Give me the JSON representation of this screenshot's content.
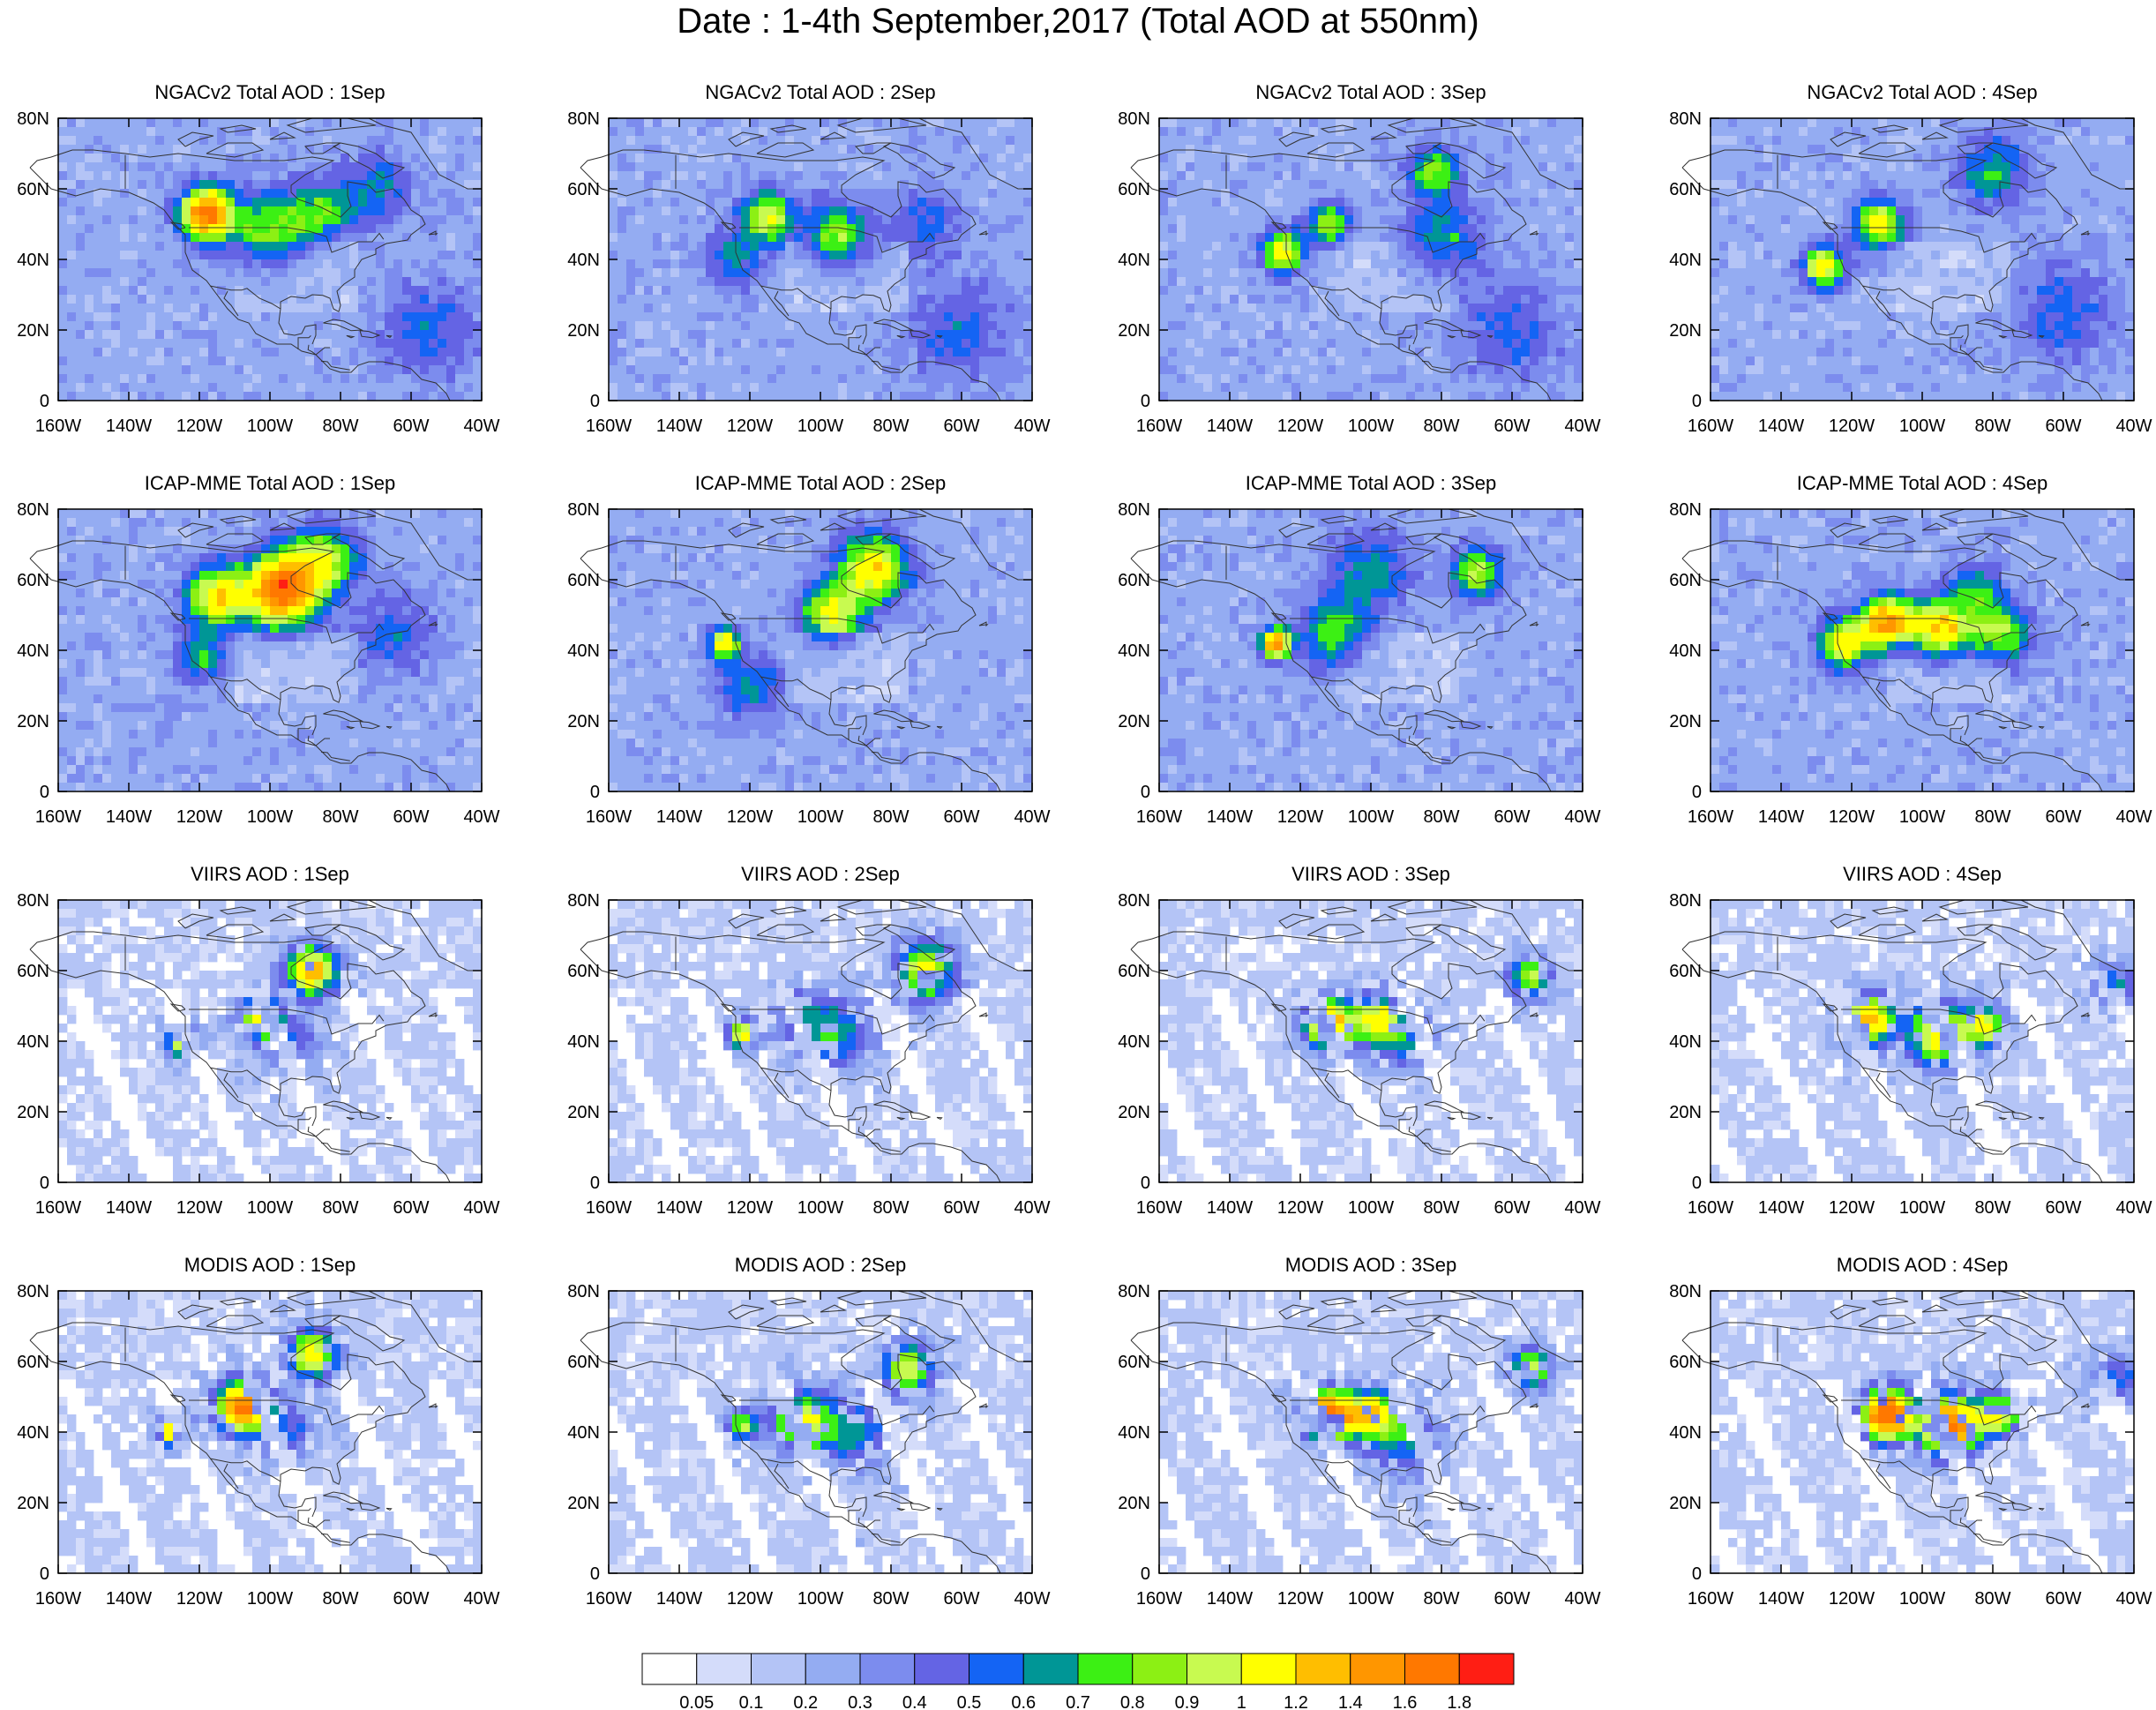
{
  "title": "Date : 1-4th September,2017 (Total AOD at 550nm)",
  "chart_data": {
    "type": "heatmap",
    "variable": "Total AOD at 550nm",
    "rows": [
      "NGACv2 Total AOD",
      "ICAP-MME Total AOD",
      "VIIRS AOD",
      "MODIS AOD"
    ],
    "days": [
      "1Sep",
      "2Sep",
      "3Sep",
      "4Sep"
    ],
    "panels": [
      {
        "title": "NGACv2 Total AOD : 1Sep",
        "hotspots": [
          {
            "lon": -118,
            "lat": 53,
            "aod": 1.4,
            "spread": 5
          },
          {
            "lon": -100,
            "lat": 48,
            "aod": 0.6,
            "spread": 8
          },
          {
            "lon": -85,
            "lat": 54,
            "aod": 0.45,
            "spread": 6
          },
          {
            "lon": -70,
            "lat": 60,
            "aod": 0.35,
            "spread": 7
          },
          {
            "lon": -55,
            "lat": 20,
            "aod": 0.3,
            "spread": 10
          }
        ]
      },
      {
        "title": "NGACv2 Total AOD : 2Sep",
        "hotspots": [
          {
            "lon": -115,
            "lat": 52,
            "aod": 0.8,
            "spread": 5
          },
          {
            "lon": -95,
            "lat": 46,
            "aod": 0.6,
            "spread": 7
          },
          {
            "lon": -125,
            "lat": 40,
            "aod": 0.35,
            "spread": 6
          },
          {
            "lon": -70,
            "lat": 50,
            "aod": 0.3,
            "spread": 7
          },
          {
            "lon": -60,
            "lat": 20,
            "aod": 0.3,
            "spread": 10
          }
        ]
      },
      {
        "title": "NGACv2 Total AOD : 3Sep",
        "hotspots": [
          {
            "lon": -125,
            "lat": 42,
            "aod": 0.9,
            "spread": 4
          },
          {
            "lon": -112,
            "lat": 50,
            "aod": 0.7,
            "spread": 4
          },
          {
            "lon": -80,
            "lat": 45,
            "aod": 0.45,
            "spread": 8
          },
          {
            "lon": -82,
            "lat": 65,
            "aod": 0.6,
            "spread": 5
          },
          {
            "lon": -60,
            "lat": 20,
            "aod": 0.3,
            "spread": 10
          }
        ]
      },
      {
        "title": "NGACv2 Total AOD : 4Sep",
        "hotspots": [
          {
            "lon": -128,
            "lat": 38,
            "aod": 0.9,
            "spread": 4
          },
          {
            "lon": -112,
            "lat": 50,
            "aod": 0.8,
            "spread": 5
          },
          {
            "lon": -80,
            "lat": 65,
            "aod": 0.45,
            "spread": 7
          },
          {
            "lon": -60,
            "lat": 25,
            "aod": 0.3,
            "spread": 10
          }
        ]
      },
      {
        "title": "ICAP-MME Total AOD : 1Sep",
        "hotspots": [
          {
            "lon": -97,
            "lat": 57,
            "aod": 1.4,
            "spread": 7
          },
          {
            "lon": -115,
            "lat": 55,
            "aod": 0.9,
            "spread": 6
          },
          {
            "lon": -85,
            "lat": 65,
            "aod": 0.7,
            "spread": 7
          },
          {
            "lon": -120,
            "lat": 38,
            "aod": 0.45,
            "spread": 5
          },
          {
            "lon": -65,
            "lat": 45,
            "aod": 0.3,
            "spread": 8
          }
        ]
      },
      {
        "title": "ICAP-MME Total AOD : 2Sep",
        "hotspots": [
          {
            "lon": -85,
            "lat": 63,
            "aod": 0.9,
            "spread": 7
          },
          {
            "lon": -97,
            "lat": 50,
            "aod": 0.8,
            "spread": 6
          },
          {
            "lon": -127,
            "lat": 42,
            "aod": 0.9,
            "spread": 3
          },
          {
            "lon": -120,
            "lat": 30,
            "aod": 0.35,
            "spread": 7
          }
        ]
      },
      {
        "title": "ICAP-MME Total AOD : 3Sep",
        "hotspots": [
          {
            "lon": -127,
            "lat": 42,
            "aod": 1.2,
            "spread": 3
          },
          {
            "lon": -110,
            "lat": 45,
            "aod": 0.55,
            "spread": 7
          },
          {
            "lon": -70,
            "lat": 62,
            "aod": 0.7,
            "spread": 5
          },
          {
            "lon": -100,
            "lat": 63,
            "aod": 0.4,
            "spread": 8
          }
        ]
      },
      {
        "title": "ICAP-MME Total AOD : 4Sep",
        "hotspots": [
          {
            "lon": -122,
            "lat": 42,
            "aod": 0.9,
            "spread": 5
          },
          {
            "lon": -110,
            "lat": 48,
            "aod": 1.2,
            "spread": 5
          },
          {
            "lon": -95,
            "lat": 46,
            "aod": 1.0,
            "spread": 6
          },
          {
            "lon": -78,
            "lat": 45,
            "aod": 0.7,
            "spread": 6
          },
          {
            "lon": -85,
            "lat": 58,
            "aod": 0.4,
            "spread": 5
          }
        ]
      },
      {
        "title": "VIIRS AOD : 1Sep",
        "hotspots": [
          {
            "lon": -88,
            "lat": 60,
            "aod": 1.2,
            "spread": 5
          },
          {
            "lon": -103,
            "lat": 47,
            "aod": 0.9,
            "spread": 4
          },
          {
            "lon": -125,
            "lat": 40,
            "aod": 1.0,
            "spread": 3
          },
          {
            "lon": -95,
            "lat": 40,
            "aod": 0.4,
            "spread": 6
          }
        ]
      },
      {
        "title": "VIIRS AOD : 2Sep",
        "hotspots": [
          {
            "lon": -70,
            "lat": 60,
            "aod": 0.9,
            "spread": 6
          },
          {
            "lon": -122,
            "lat": 42,
            "aod": 1.0,
            "spread": 3
          },
          {
            "lon": -95,
            "lat": 42,
            "aod": 0.5,
            "spread": 7
          },
          {
            "lon": -105,
            "lat": 47,
            "aod": 0.4,
            "spread": 6
          }
        ]
      },
      {
        "title": "VIIRS AOD : 3Sep",
        "hotspots": [
          {
            "lon": -112,
            "lat": 45,
            "aod": 1.2,
            "spread": 5
          },
          {
            "lon": -98,
            "lat": 46,
            "aod": 0.9,
            "spread": 5
          },
          {
            "lon": -55,
            "lat": 58,
            "aod": 0.8,
            "spread": 4
          },
          {
            "lon": -90,
            "lat": 40,
            "aod": 0.4,
            "spread": 6
          }
        ]
      },
      {
        "title": "VIIRS AOD : 4Sep",
        "hotspots": [
          {
            "lon": -115,
            "lat": 46,
            "aod": 1.2,
            "spread": 5
          },
          {
            "lon": -95,
            "lat": 42,
            "aod": 1.1,
            "spread": 6
          },
          {
            "lon": -82,
            "lat": 44,
            "aod": 0.9,
            "spread": 4
          },
          {
            "lon": -45,
            "lat": 55,
            "aod": 0.45,
            "spread": 5
          }
        ]
      },
      {
        "title": "MODIS AOD : 1Sep",
        "hotspots": [
          {
            "lon": -108,
            "lat": 47,
            "aod": 1.5,
            "spread": 5
          },
          {
            "lon": -88,
            "lat": 62,
            "aod": 1.0,
            "spread": 5
          },
          {
            "lon": -127,
            "lat": 40,
            "aod": 1.2,
            "spread": 3
          },
          {
            "lon": -95,
            "lat": 40,
            "aod": 0.4,
            "spread": 6
          }
        ]
      },
      {
        "title": "MODIS AOD : 2Sep",
        "hotspots": [
          {
            "lon": -105,
            "lat": 43,
            "aod": 0.9,
            "spread": 6
          },
          {
            "lon": -75,
            "lat": 58,
            "aod": 0.9,
            "spread": 5
          },
          {
            "lon": -122,
            "lat": 42,
            "aod": 0.8,
            "spread": 3
          },
          {
            "lon": -90,
            "lat": 40,
            "aod": 0.5,
            "spread": 7
          }
        ]
      },
      {
        "title": "MODIS AOD : 3Sep",
        "hotspots": [
          {
            "lon": -112,
            "lat": 45,
            "aod": 1.5,
            "spread": 5
          },
          {
            "lon": -100,
            "lat": 45,
            "aod": 1.0,
            "spread": 5
          },
          {
            "lon": -55,
            "lat": 58,
            "aod": 0.9,
            "spread": 4
          },
          {
            "lon": -90,
            "lat": 38,
            "aod": 0.5,
            "spread": 7
          }
        ]
      },
      {
        "title": "MODIS AOD : 4Sep",
        "hotspots": [
          {
            "lon": -110,
            "lat": 45,
            "aod": 1.7,
            "spread": 5
          },
          {
            "lon": -92,
            "lat": 42,
            "aod": 1.5,
            "spread": 6
          },
          {
            "lon": -78,
            "lat": 45,
            "aod": 1.0,
            "spread": 4
          },
          {
            "lon": -45,
            "lat": 55,
            "aod": 0.45,
            "spread": 5
          }
        ]
      }
    ],
    "lon_range": [
      -160,
      -40
    ],
    "lat_range": [
      0,
      80
    ],
    "x_ticks": [
      "160W",
      "140W",
      "120W",
      "100W",
      "80W",
      "60W",
      "40W"
    ],
    "y_ticks": [
      "0",
      "20N",
      "40N",
      "60N",
      "80N"
    ],
    "colorbar": {
      "levels": [
        "0.05",
        "0.1",
        "0.2",
        "0.3",
        "0.4",
        "0.5",
        "0.6",
        "0.7",
        "0.8",
        "0.9",
        "1",
        "1.2",
        "1.4",
        "1.6",
        "1.8"
      ],
      "level_values": [
        0.05,
        0.1,
        0.2,
        0.3,
        0.4,
        0.5,
        0.6,
        0.7,
        0.8,
        0.9,
        1,
        1.2,
        1.4,
        1.6,
        1.8
      ],
      "colors": [
        "#FFFFFF",
        "#D4DCFA",
        "#B4C4F6",
        "#94ACF2",
        "#7C8CEE",
        "#6464E4",
        "#1464F4",
        "#009696",
        "#3CF014",
        "#8CF014",
        "#C8FA50",
        "#FFFF00",
        "#FFBE00",
        "#FF9600",
        "#FF7800",
        "#FF1E14"
      ]
    }
  }
}
